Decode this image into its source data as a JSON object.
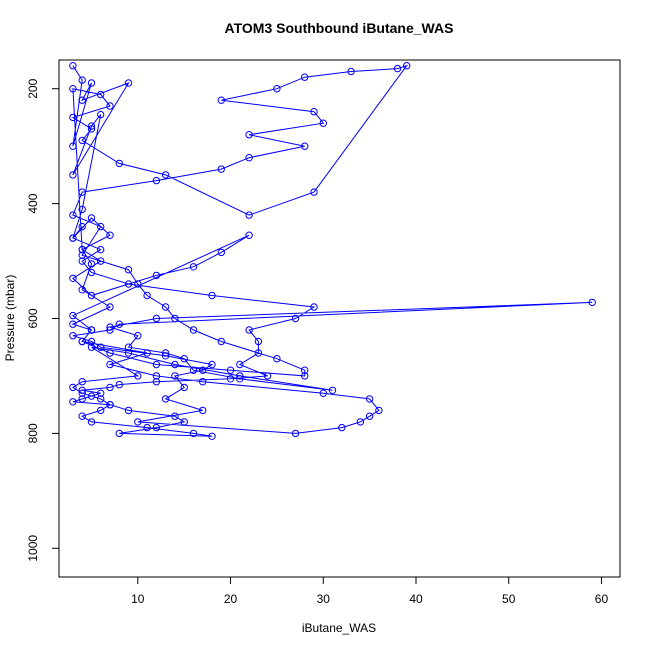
{
  "chart_data": {
    "type": "line",
    "title": "ATOM3 Southbound iButane_WAS",
    "xlabel": "iButane_WAS",
    "ylabel": "Pressure (mbar)",
    "xlim": [
      1.5,
      62
    ],
    "ylim": [
      1050,
      150
    ],
    "y_reversed": true,
    "xticks": [
      10,
      20,
      30,
      40,
      50,
      60
    ],
    "yticks": [
      200,
      400,
      600,
      800,
      1000
    ],
    "grid": false,
    "legend": "none",
    "marker": "open-circle",
    "color": "#0000ff",
    "series": [
      {
        "x": [
          3,
          4,
          3,
          5,
          4,
          9,
          3,
          5,
          6,
          4,
          3,
          5,
          7,
          4,
          6,
          3,
          5,
          12,
          16,
          19,
          22,
          3,
          5,
          4,
          7,
          12,
          20,
          28,
          28,
          25,
          19,
          16,
          14,
          13,
          11,
          10,
          9,
          4,
          6,
          3,
          4,
          12,
          19,
          22,
          28,
          22,
          30,
          29,
          19,
          25,
          28,
          33,
          38,
          39,
          29,
          22,
          13,
          8,
          4,
          5,
          3,
          7,
          6,
          3,
          4,
          5,
          4,
          7,
          3,
          5,
          4,
          11,
          7,
          12,
          17,
          30,
          35,
          36,
          35,
          34,
          32,
          27,
          10,
          17,
          13,
          15,
          14,
          17,
          18,
          13,
          6,
          5,
          3,
          7,
          8,
          59,
          12,
          7,
          10,
          9,
          13,
          15,
          16,
          21,
          31,
          21,
          14,
          9,
          5,
          10,
          4,
          3,
          4,
          6,
          7,
          9,
          14,
          15,
          12,
          8,
          18,
          16,
          11,
          5,
          4,
          6,
          7,
          3,
          4,
          5,
          6,
          4,
          7,
          8,
          12,
          20,
          24,
          21,
          23,
          23,
          22,
          27,
          29,
          18,
          9,
          5,
          4,
          6,
          3,
          4
        ],
        "y": [
          160,
          185,
          300,
          190,
          220,
          190,
          350,
          265,
          245,
          410,
          460,
          425,
          455,
          480,
          500,
          530,
          560,
          525,
          510,
          485,
          455,
          595,
          620,
          640,
          660,
          680,
          690,
          700,
          690,
          670,
          640,
          620,
          600,
          580,
          560,
          540,
          515,
          490,
          440,
          420,
          380,
          360,
          340,
          320,
          300,
          280,
          260,
          240,
          220,
          200,
          180,
          170,
          165,
          160,
          380,
          420,
          350,
          330,
          290,
          270,
          250,
          230,
          210,
          200,
          480,
          505,
          550,
          580,
          610,
          620,
          640,
          660,
          680,
          700,
          710,
          730,
          740,
          760,
          770,
          780,
          790,
          800,
          780,
          760,
          740,
          720,
          700,
          690,
          680,
          665,
          650,
          640,
          630,
          620,
          610,
          572,
          600,
          615,
          630,
          650,
          660,
          670,
          690,
          705,
          725,
          700,
          680,
          660,
          650,
          700,
          710,
          720,
          730,
          740,
          750,
          760,
          770,
          780,
          790,
          800,
          805,
          800,
          790,
          780,
          770,
          760,
          750,
          745,
          740,
          735,
          730,
          725,
          720,
          715,
          710,
          705,
          700,
          680,
          660,
          640,
          620,
          600,
          580,
          560,
          540,
          520,
          500,
          480,
          460,
          440
        ]
      }
    ]
  }
}
